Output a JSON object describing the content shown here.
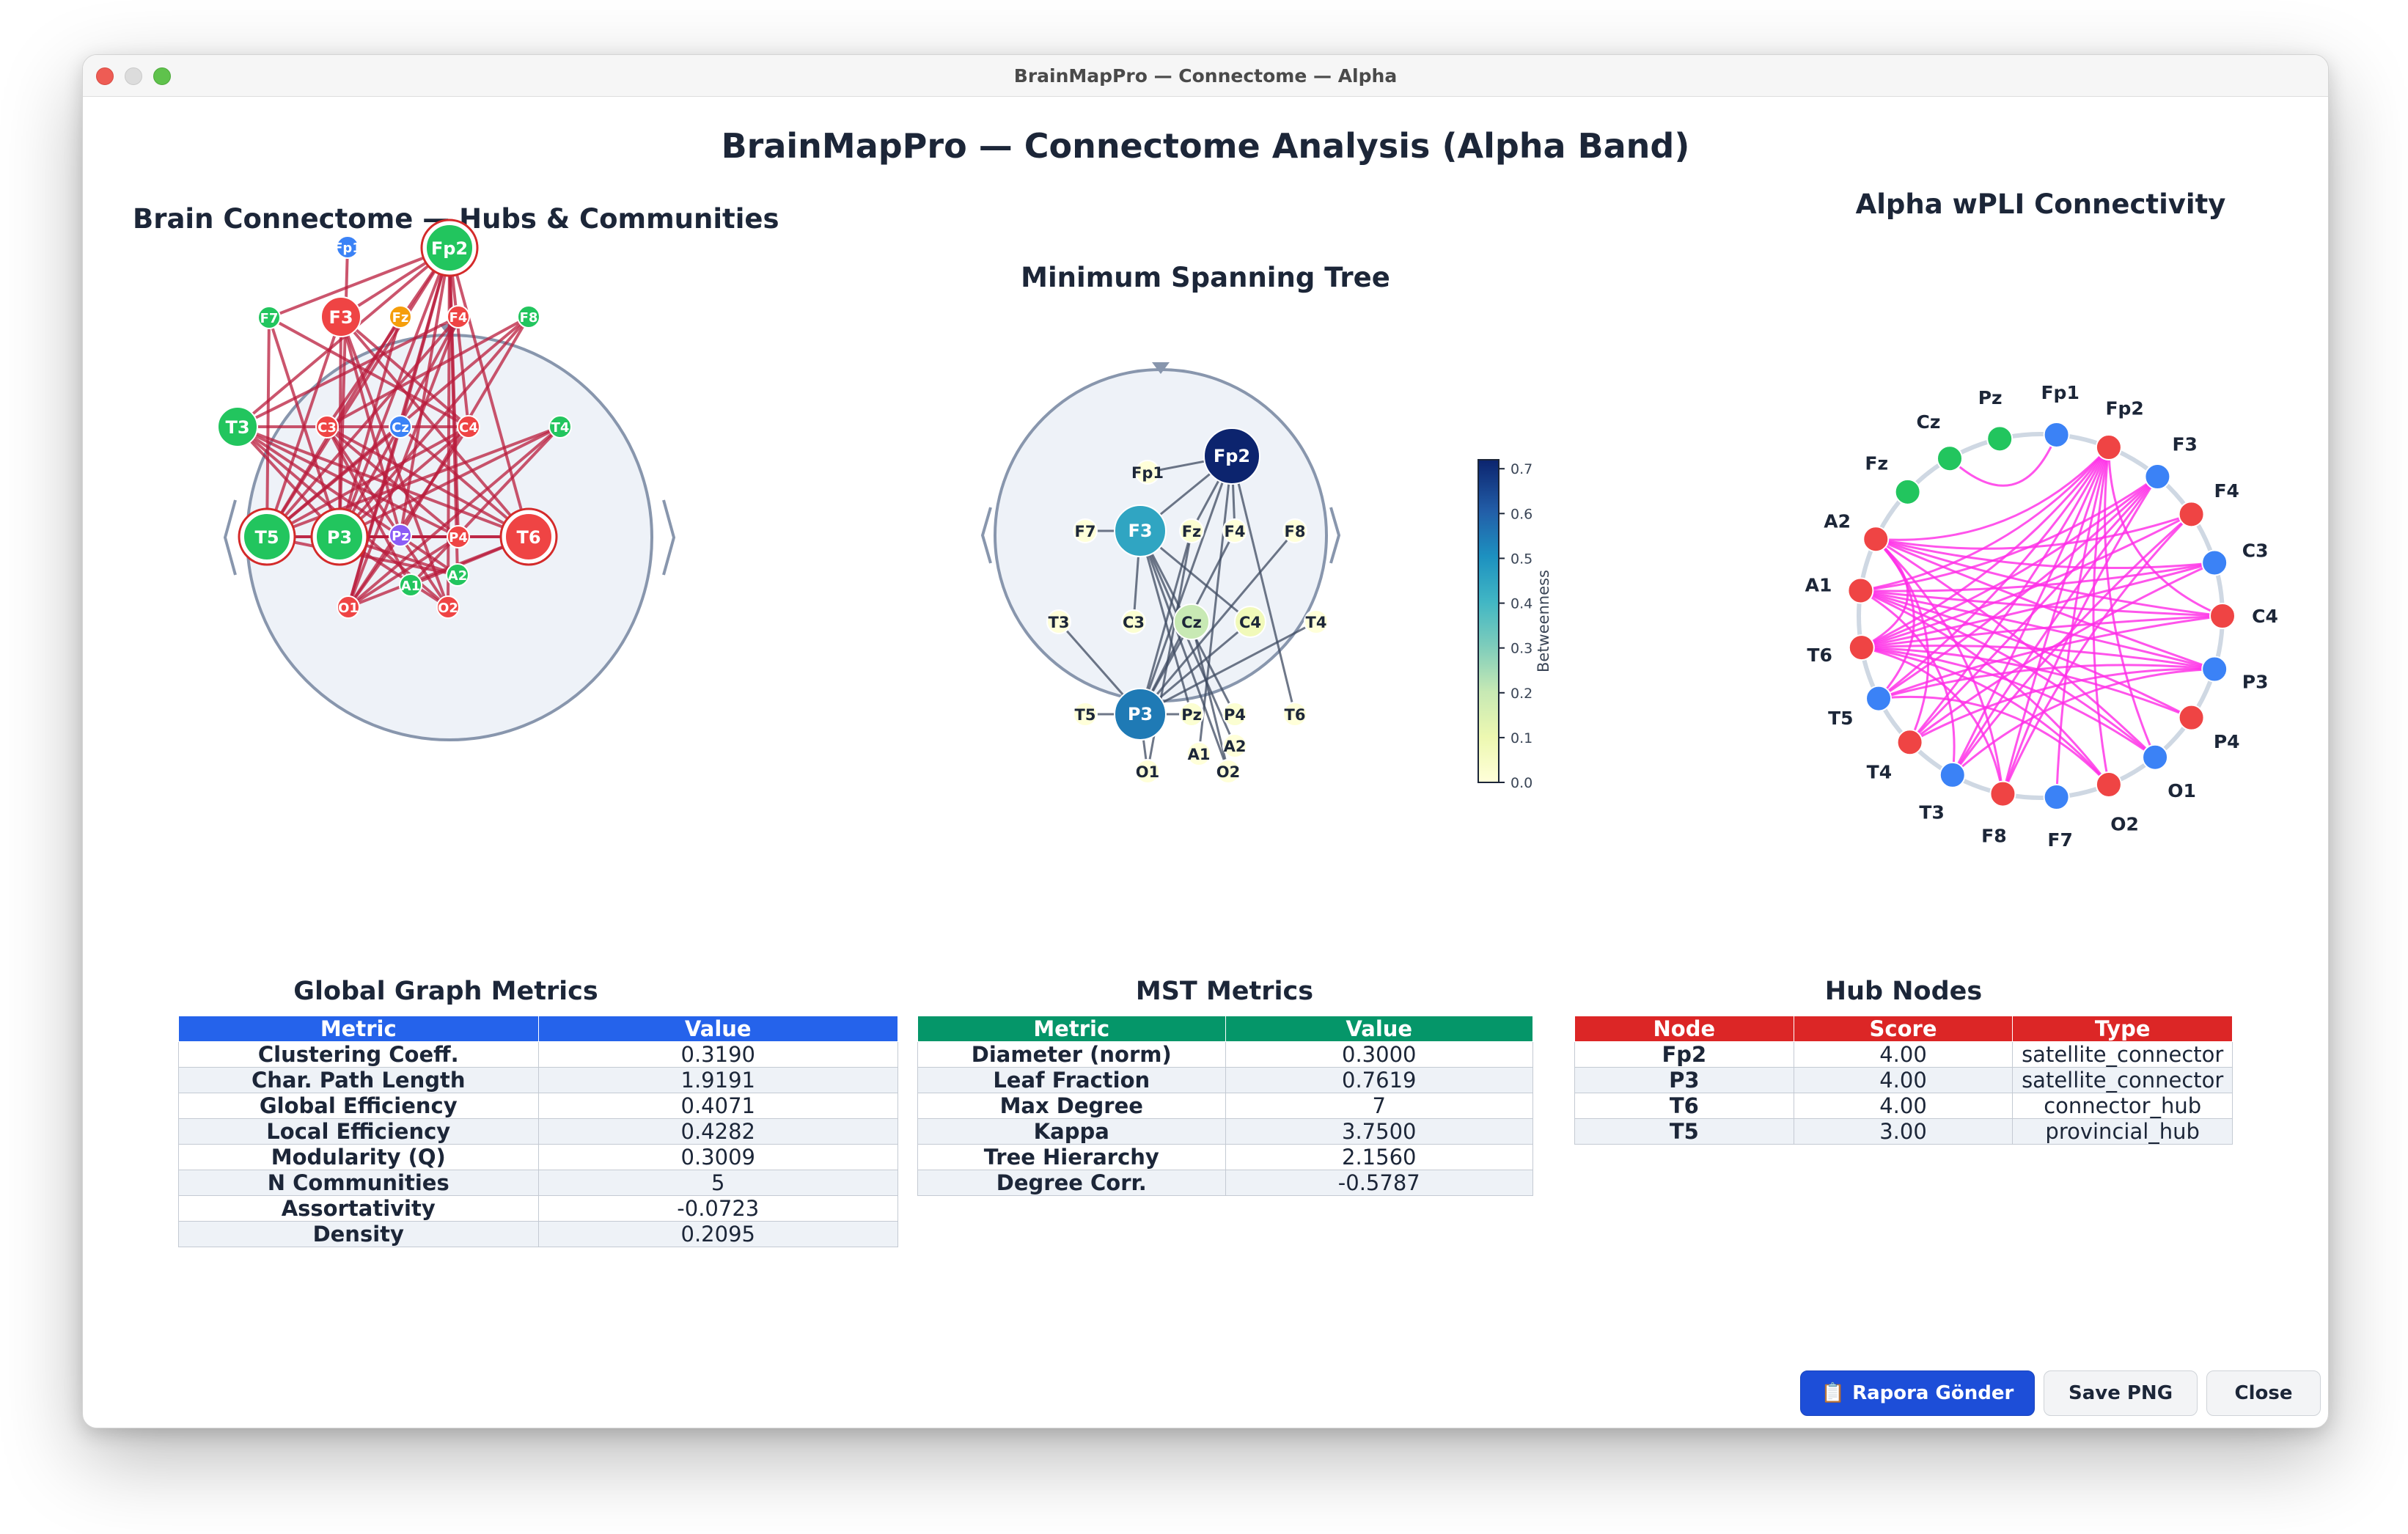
{
  "window": {
    "title": "BrainMapPro — Connectome — Alpha"
  },
  "main_title": "BrainMapPro — Connectome Analysis  (Alpha Band)",
  "panels": {
    "connectome": {
      "title": "Brain Connectome — Hubs & Communities"
    },
    "mst": {
      "title": "Minimum Spanning Tree",
      "colorbar_label": "Betweenness",
      "colorbar_ticks": [
        "0.0",
        "0.1",
        "0.2",
        "0.3",
        "0.4",
        "0.5",
        "0.6",
        "0.7"
      ]
    },
    "wpli": {
      "title": "Alpha wPLI Connectivity"
    }
  },
  "connectome_nodes": [
    {
      "label": "Fp2",
      "color": "#22c55e",
      "hub": true,
      "big": true
    },
    {
      "label": "Fp1",
      "color": "#3b82f6"
    },
    {
      "label": "F7",
      "color": "#22c55e"
    },
    {
      "label": "F3",
      "color": "#ef4444",
      "mid": true
    },
    {
      "label": "Fz",
      "color": "#f59e0b"
    },
    {
      "label": "F4",
      "color": "#ef4444"
    },
    {
      "label": "F8",
      "color": "#22c55e"
    },
    {
      "label": "T3",
      "color": "#22c55e",
      "mid": true
    },
    {
      "label": "C3",
      "color": "#ef4444"
    },
    {
      "label": "Cz",
      "color": "#3b82f6"
    },
    {
      "label": "C4",
      "color": "#ef4444"
    },
    {
      "label": "T4",
      "color": "#22c55e"
    },
    {
      "label": "T5",
      "color": "#22c55e",
      "hub": true,
      "big": true
    },
    {
      "label": "P3",
      "color": "#22c55e",
      "hub": true,
      "big": true
    },
    {
      "label": "Pz",
      "color": "#8b5cf6"
    },
    {
      "label": "P4",
      "color": "#ef4444"
    },
    {
      "label": "T6",
      "color": "#ef4444",
      "hub": true,
      "big": true
    },
    {
      "label": "A1",
      "color": "#22c55e"
    },
    {
      "label": "A2",
      "color": "#22c55e"
    },
    {
      "label": "O1",
      "color": "#ef4444"
    },
    {
      "label": "O2",
      "color": "#ef4444"
    }
  ],
  "mst_nodes": [
    {
      "label": "Fp2",
      "bt": 0.72
    },
    {
      "label": "Fp1",
      "bt": 0.0
    },
    {
      "label": "F7",
      "bt": 0.0
    },
    {
      "label": "F3",
      "bt": 0.45
    },
    {
      "label": "Fz",
      "bt": 0.02
    },
    {
      "label": "F4",
      "bt": 0.0
    },
    {
      "label": "F8",
      "bt": 0.0
    },
    {
      "label": "T3",
      "bt": 0.0
    },
    {
      "label": "C3",
      "bt": 0.02
    },
    {
      "label": "Cz",
      "bt": 0.2
    },
    {
      "label": "C4",
      "bt": 0.08
    },
    {
      "label": "T4",
      "bt": 0.0
    },
    {
      "label": "T5",
      "bt": 0.0
    },
    {
      "label": "P3",
      "bt": 0.55
    },
    {
      "label": "Pz",
      "bt": 0.02
    },
    {
      "label": "P4",
      "bt": 0.02
    },
    {
      "label": "T6",
      "bt": 0.0
    },
    {
      "label": "A1",
      "bt": 0.0
    },
    {
      "label": "A2",
      "bt": 0.0
    },
    {
      "label": "O1",
      "bt": 0.0
    },
    {
      "label": "O2",
      "bt": 0.0
    }
  ],
  "wpli_nodes": [
    {
      "label": "Fp1",
      "color": "#3b82f6"
    },
    {
      "label": "Fp2",
      "color": "#ef4444"
    },
    {
      "label": "F3",
      "color": "#3b82f6"
    },
    {
      "label": "F4",
      "color": "#ef4444"
    },
    {
      "label": "C3",
      "color": "#3b82f6"
    },
    {
      "label": "C4",
      "color": "#ef4444"
    },
    {
      "label": "P3",
      "color": "#3b82f6"
    },
    {
      "label": "P4",
      "color": "#ef4444"
    },
    {
      "label": "O1",
      "color": "#3b82f6"
    },
    {
      "label": "O2",
      "color": "#ef4444"
    },
    {
      "label": "F7",
      "color": "#3b82f6"
    },
    {
      "label": "F8",
      "color": "#ef4444"
    },
    {
      "label": "T3",
      "color": "#3b82f6"
    },
    {
      "label": "T4",
      "color": "#ef4444"
    },
    {
      "label": "T5",
      "color": "#3b82f6"
    },
    {
      "label": "T6",
      "color": "#ef4444"
    },
    {
      "label": "A1",
      "color": "#ef4444"
    },
    {
      "label": "A2",
      "color": "#ef4444"
    },
    {
      "label": "Fz",
      "color": "#22c55e"
    },
    {
      "label": "Cz",
      "color": "#22c55e"
    },
    {
      "label": "Pz",
      "color": "#22c55e"
    }
  ],
  "tables": {
    "global": {
      "title": "Global Graph Metrics",
      "headers": [
        "Metric",
        "Value"
      ],
      "rows": [
        [
          "Clustering Coeff.",
          "0.3190"
        ],
        [
          "Char. Path Length",
          "1.9191"
        ],
        [
          "Global Efficiency",
          "0.4071"
        ],
        [
          "Local Efficiency",
          "0.4282"
        ],
        [
          "Modularity (Q)",
          "0.3009"
        ],
        [
          "N Communities",
          "5"
        ],
        [
          "Assortativity",
          "-0.0723"
        ],
        [
          "Density",
          "0.2095"
        ]
      ]
    },
    "mst": {
      "title": "MST Metrics",
      "headers": [
        "Metric",
        "Value"
      ],
      "rows": [
        [
          "Diameter (norm)",
          "0.3000"
        ],
        [
          "Leaf Fraction",
          "0.7619"
        ],
        [
          "Max Degree",
          "7"
        ],
        [
          "Kappa",
          "3.7500"
        ],
        [
          "Tree Hierarchy",
          "2.1560"
        ],
        [
          "Degree Corr.",
          "-0.5787"
        ]
      ]
    },
    "hubs": {
      "title": "Hub Nodes",
      "headers": [
        "Node",
        "Score",
        "Type"
      ],
      "rows": [
        [
          "Fp2",
          "4.00",
          "satellite_connector"
        ],
        [
          "P3",
          "4.00",
          "satellite_connector"
        ],
        [
          "T6",
          "4.00",
          "connector_hub"
        ],
        [
          "T5",
          "3.00",
          "provincial_hub"
        ]
      ]
    }
  },
  "buttons": {
    "report_icon": "📋",
    "report": "Rapora Gönder",
    "save": "Save PNG",
    "close": "Close"
  },
  "colors": {
    "global_header": "#2563eb",
    "mst_header": "#059669",
    "hub_header": "#dc2626",
    "edge_connectome": "#b91c3c",
    "edge_wpli": "#ff2ee6"
  }
}
